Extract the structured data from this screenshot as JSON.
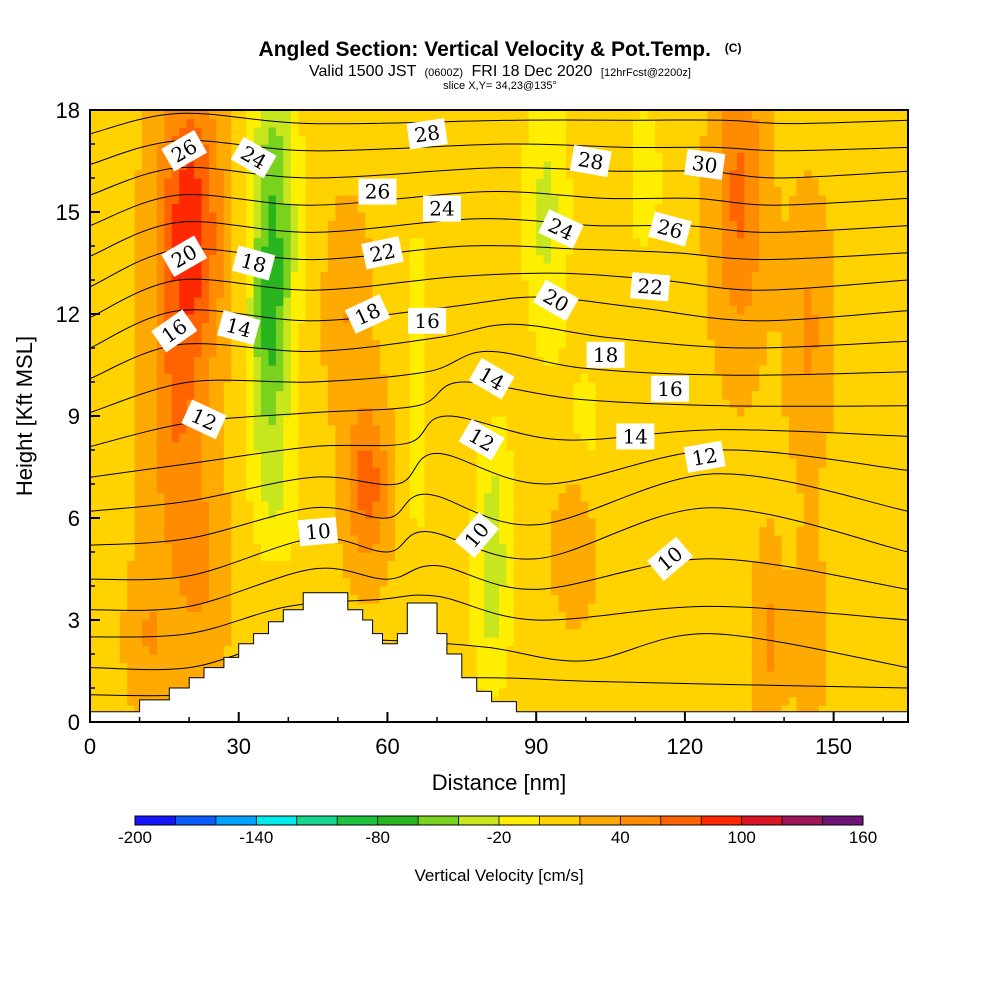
{
  "title": {
    "main": "Angled Section: Vertical Velocity & Pot.Temp.",
    "copyright": "(C)",
    "valid_prefix": "Valid 1500 JST",
    "valid_z": "(0600Z)",
    "valid_date": "FRI 18 Dec 2020",
    "valid_fcst": "[12hrFcst@2200z]",
    "slice": "slice X,Y= 34,23@135°"
  },
  "chart_data": {
    "type": "heatmap",
    "xlabel": "Distance [nm]",
    "ylabel": "Height [Kft MSL]",
    "xlim": [
      0,
      165
    ],
    "ylim": [
      0,
      18
    ],
    "xticks": [
      "0",
      "30",
      "60",
      "90",
      "120",
      "150"
    ],
    "yticks": [
      "0",
      "3",
      "6",
      "9",
      "12",
      "15",
      "18"
    ],
    "colorbar": {
      "label": "Vertical Velocity [cm/s]",
      "tick_labels": [
        "-200",
        "-140",
        "-80",
        "-20",
        "40",
        "100",
        "160"
      ],
      "levels": [
        -200,
        -180,
        -160,
        -140,
        -120,
        -100,
        -80,
        -60,
        -40,
        -20,
        0,
        20,
        40,
        60,
        80,
        100,
        120,
        140,
        160
      ],
      "colors": [
        "#1414ff",
        "#0a5cff",
        "#00a2ff",
        "#00ecec",
        "#14d68c",
        "#1ec23c",
        "#28b41e",
        "#78d21e",
        "#c8e61e",
        "#ffee00",
        "#ffd200",
        "#ffaa00",
        "#ff8c00",
        "#ff6400",
        "#ff2800",
        "#dc1428",
        "#a0145a",
        "#6e1478"
      ]
    },
    "field": "vertical_velocity_cm_s",
    "background_velocity": 15,
    "updrafts_downdrafts": [
      {
        "x": 20,
        "y": 14.5,
        "sx": 4.5,
        "sy": 3.0,
        "v": 80
      },
      {
        "x": 17,
        "y": 8.5,
        "sx": 4.0,
        "sy": 2.5,
        "v": 35
      },
      {
        "x": 22,
        "y": 4.5,
        "sx": 4.0,
        "sy": 2.0,
        "v": 28
      },
      {
        "x": 37,
        "y": 15.0,
        "sx": 3.5,
        "sy": 3.5,
        "v": -70
      },
      {
        "x": 36,
        "y": 10.5,
        "sx": 3.0,
        "sy": 2.5,
        "v": -45
      },
      {
        "x": 38,
        "y": 6.5,
        "sx": 4.0,
        "sy": 1.5,
        "v": -25
      },
      {
        "x": 56,
        "y": 7.0,
        "sx": 3.0,
        "sy": 1.6,
        "v": 55
      },
      {
        "x": 52,
        "y": 12.0,
        "sx": 3.0,
        "sy": 2.0,
        "v": 25
      },
      {
        "x": 66,
        "y": 10.0,
        "sx": 2.0,
        "sy": 4.5,
        "v": -25
      },
      {
        "x": 81,
        "y": 4.0,
        "sx": 3.0,
        "sy": 2.3,
        "v": -45
      },
      {
        "x": 82,
        "y": 7.5,
        "sx": 2.5,
        "sy": 1.5,
        "v": -20
      },
      {
        "x": 92,
        "y": 15.0,
        "sx": 3.5,
        "sy": 3.0,
        "v": -40
      },
      {
        "x": 100,
        "y": 8.5,
        "sx": 4.0,
        "sy": 2.0,
        "v": -20
      },
      {
        "x": 98,
        "y": 5.5,
        "sx": 3.0,
        "sy": 1.5,
        "v": 28
      },
      {
        "x": 112,
        "y": 16.0,
        "sx": 3.0,
        "sy": 2.0,
        "v": -25
      },
      {
        "x": 131,
        "y": 15.5,
        "sx": 3.5,
        "sy": 3.0,
        "v": 50
      },
      {
        "x": 145,
        "y": 11.5,
        "sx": 3.0,
        "sy": 2.5,
        "v": 28
      },
      {
        "x": 137,
        "y": 2.5,
        "sx": 2.0,
        "sy": 1.8,
        "v": 30
      },
      {
        "x": 145,
        "y": 2.5,
        "sx": 2.0,
        "sy": 1.8,
        "v": 25
      },
      {
        "x": 12,
        "y": 2.5,
        "sx": 3.0,
        "sy": 1.5,
        "v": 25
      }
    ],
    "terrain": [
      [
        0,
        0.3
      ],
      [
        10,
        0.3
      ],
      [
        10,
        0.65
      ],
      [
        16,
        0.65
      ],
      [
        16,
        1.0
      ],
      [
        20,
        1.0
      ],
      [
        20,
        1.3
      ],
      [
        23,
        1.3
      ],
      [
        23,
        1.6
      ],
      [
        27,
        1.6
      ],
      [
        27,
        1.9
      ],
      [
        30,
        1.9
      ],
      [
        30,
        2.3
      ],
      [
        33,
        2.3
      ],
      [
        33,
        2.6
      ],
      [
        36,
        2.6
      ],
      [
        36,
        2.95
      ],
      [
        39,
        2.95
      ],
      [
        39,
        3.3
      ],
      [
        43,
        3.3
      ],
      [
        43,
        3.8
      ],
      [
        52,
        3.8
      ],
      [
        52,
        3.3
      ],
      [
        55,
        3.3
      ],
      [
        55,
        3.0
      ],
      [
        57,
        3.0
      ],
      [
        57,
        2.6
      ],
      [
        59,
        2.6
      ],
      [
        59,
        2.3
      ],
      [
        62,
        2.3
      ],
      [
        62,
        2.6
      ],
      [
        64,
        2.6
      ],
      [
        64,
        3.5
      ],
      [
        70,
        3.5
      ],
      [
        70,
        2.6
      ],
      [
        72,
        2.6
      ],
      [
        72,
        2.0
      ],
      [
        75,
        2.0
      ],
      [
        75,
        1.3
      ],
      [
        78,
        1.3
      ],
      [
        78,
        0.9
      ],
      [
        81,
        0.9
      ],
      [
        81,
        0.6
      ],
      [
        86,
        0.6
      ],
      [
        86,
        0.3
      ],
      [
        165,
        0.3
      ]
    ],
    "isentropes": [
      {
        "label": "10",
        "points": [
          [
            0,
            0.8
          ],
          [
            20,
            0.8
          ],
          [
            45,
            1.2
          ],
          [
            80,
            1.3
          ],
          [
            100,
            1.2
          ],
          [
            130,
            1.1
          ],
          [
            165,
            1.0
          ]
        ]
      },
      {
        "label": "10",
        "points": [
          [
            0,
            1.6
          ],
          [
            20,
            1.6
          ],
          [
            40,
            2.4
          ],
          [
            60,
            2.4
          ],
          [
            80,
            2.2
          ],
          [
            100,
            1.8
          ],
          [
            125,
            2.6
          ],
          [
            165,
            1.6
          ]
        ]
      },
      {
        "label": "10",
        "points": [
          [
            0,
            2.5
          ],
          [
            20,
            2.6
          ],
          [
            40,
            3.4
          ],
          [
            58,
            3.6
          ],
          [
            70,
            3.7
          ],
          [
            90,
            3.0
          ],
          [
            125,
            3.4
          ],
          [
            165,
            3.0
          ]
        ]
      },
      {
        "label": "10",
        "points": [
          [
            0,
            3.3
          ],
          [
            20,
            3.4
          ],
          [
            45,
            4.5
          ],
          [
            60,
            4.2
          ],
          [
            70,
            4.6
          ],
          [
            90,
            3.9
          ],
          [
            125,
            4.8
          ],
          [
            165,
            3.9
          ]
        ]
      },
      {
        "label": "10",
        "points": [
          [
            0,
            4.2
          ],
          [
            20,
            4.3
          ],
          [
            45,
            5.4
          ],
          [
            60,
            5.0
          ],
          [
            68,
            5.6
          ],
          [
            90,
            4.8
          ],
          [
            125,
            6.3
          ],
          [
            165,
            5.0
          ]
        ]
      },
      {
        "label": "12",
        "points": [
          [
            0,
            5.2
          ],
          [
            20,
            5.4
          ],
          [
            45,
            6.3
          ],
          [
            60,
            6.0
          ],
          [
            68,
            6.7
          ],
          [
            90,
            5.8
          ],
          [
            126,
            7.3
          ],
          [
            165,
            6.2
          ]
        ]
      },
      {
        "label": "12",
        "points": [
          [
            0,
            6.2
          ],
          [
            20,
            6.5
          ],
          [
            45,
            7.2
          ],
          [
            62,
            7.0
          ],
          [
            70,
            7.9
          ],
          [
            92,
            7.0
          ],
          [
            126,
            8.0
          ],
          [
            165,
            7.4
          ]
        ]
      },
      {
        "label": "12",
        "points": [
          [
            0,
            7.2
          ],
          [
            20,
            7.6
          ],
          [
            45,
            8.1
          ],
          [
            64,
            8.2
          ],
          [
            72,
            9.0
          ],
          [
            95,
            8.3
          ],
          [
            127,
            8.6
          ],
          [
            165,
            8.4
          ]
        ]
      },
      {
        "label": "14",
        "points": [
          [
            0,
            8.1
          ],
          [
            20,
            8.8
          ],
          [
            45,
            9.1
          ],
          [
            66,
            9.3
          ],
          [
            75,
            10.0
          ],
          [
            98,
            9.5
          ],
          [
            128,
            9.3
          ],
          [
            165,
            9.3
          ]
        ]
      },
      {
        "label": "14",
        "points": [
          [
            0,
            9.1
          ],
          [
            20,
            10.0
          ],
          [
            45,
            10.0
          ],
          [
            68,
            10.3
          ],
          [
            80,
            10.9
          ],
          [
            100,
            10.4
          ],
          [
            130,
            10.2
          ],
          [
            165,
            10.3
          ]
        ]
      },
      {
        "label": "16",
        "points": [
          [
            0,
            10.1
          ],
          [
            18,
            11.1
          ],
          [
            45,
            10.9
          ],
          [
            70,
            11.3
          ],
          [
            85,
            11.7
          ],
          [
            105,
            11.3
          ],
          [
            132,
            11.0
          ],
          [
            165,
            11.2
          ]
        ]
      },
      {
        "label": "16",
        "points": [
          [
            0,
            11.0
          ],
          [
            18,
            12.1
          ],
          [
            45,
            11.8
          ],
          [
            72,
            12.2
          ],
          [
            90,
            12.5
          ],
          [
            110,
            12.2
          ],
          [
            134,
            11.8
          ],
          [
            165,
            12.1
          ]
        ]
      },
      {
        "label": "18",
        "points": [
          [
            0,
            11.9
          ],
          [
            18,
            13.0
          ],
          [
            45,
            12.7
          ],
          [
            74,
            13.1
          ],
          [
            95,
            13.2
          ],
          [
            115,
            13.0
          ],
          [
            135,
            12.7
          ],
          [
            165,
            13.0
          ]
        ]
      },
      {
        "label": "20",
        "points": [
          [
            0,
            12.8
          ],
          [
            18,
            13.9
          ],
          [
            45,
            13.6
          ],
          [
            76,
            14.0
          ],
          [
            100,
            13.9
          ],
          [
            118,
            13.8
          ],
          [
            136,
            13.6
          ],
          [
            165,
            13.8
          ]
        ]
      },
      {
        "label": "22",
        "points": [
          [
            0,
            13.7
          ],
          [
            18,
            14.7
          ],
          [
            45,
            14.4
          ],
          [
            78,
            14.8
          ],
          [
            102,
            14.6
          ],
          [
            120,
            14.6
          ],
          [
            137,
            14.4
          ],
          [
            165,
            14.6
          ]
        ]
      },
      {
        "label": "24",
        "points": [
          [
            0,
            14.6
          ],
          [
            18,
            15.5
          ],
          [
            45,
            15.2
          ],
          [
            80,
            15.6
          ],
          [
            104,
            15.4
          ],
          [
            122,
            15.4
          ],
          [
            138,
            15.2
          ],
          [
            165,
            15.4
          ]
        ]
      },
      {
        "label": "26",
        "points": [
          [
            0,
            15.5
          ],
          [
            18,
            16.3
          ],
          [
            45,
            16.0
          ],
          [
            82,
            16.3
          ],
          [
            106,
            16.2
          ],
          [
            124,
            16.2
          ],
          [
            139,
            16.0
          ],
          [
            165,
            16.2
          ]
        ]
      },
      {
        "label": "28",
        "points": [
          [
            0,
            16.4
          ],
          [
            18,
            17.1
          ],
          [
            45,
            16.8
          ],
          [
            84,
            17.0
          ],
          [
            108,
            16.9
          ],
          [
            126,
            16.9
          ],
          [
            140,
            16.8
          ],
          [
            165,
            16.9
          ]
        ]
      },
      {
        "label": "30",
        "points": [
          [
            0,
            17.3
          ],
          [
            18,
            17.9
          ],
          [
            45,
            17.6
          ],
          [
            86,
            17.7
          ],
          [
            110,
            17.7
          ],
          [
            128,
            17.7
          ],
          [
            141,
            17.6
          ],
          [
            165,
            17.7
          ]
        ]
      }
    ],
    "contour_labels": [
      {
        "text": "26",
        "x": 19,
        "y": 16.8,
        "rot": -30
      },
      {
        "text": "24",
        "x": 33,
        "y": 16.6,
        "rot": 30
      },
      {
        "text": "28",
        "x": 68,
        "y": 17.3,
        "rot": -8
      },
      {
        "text": "26",
        "x": 58,
        "y": 15.6,
        "rot": 0
      },
      {
        "text": "24",
        "x": 71,
        "y": 15.1,
        "rot": 0
      },
      {
        "text": "28",
        "x": 101,
        "y": 16.5,
        "rot": 10
      },
      {
        "text": "30",
        "x": 124,
        "y": 16.4,
        "rot": 8
      },
      {
        "text": "20",
        "x": 19,
        "y": 13.7,
        "rot": -30
      },
      {
        "text": "18",
        "x": 33,
        "y": 13.5,
        "rot": 15
      },
      {
        "text": "22",
        "x": 59,
        "y": 13.8,
        "rot": -12
      },
      {
        "text": "24",
        "x": 95,
        "y": 14.5,
        "rot": 25
      },
      {
        "text": "26",
        "x": 117,
        "y": 14.5,
        "rot": 15
      },
      {
        "text": "16",
        "x": 17,
        "y": 11.5,
        "rot": -35
      },
      {
        "text": "14",
        "x": 30,
        "y": 11.6,
        "rot": 15
      },
      {
        "text": "18",
        "x": 56,
        "y": 12.0,
        "rot": -25
      },
      {
        "text": "16",
        "x": 68,
        "y": 11.8,
        "rot": 0
      },
      {
        "text": "20",
        "x": 94,
        "y": 12.4,
        "rot": 30
      },
      {
        "text": "22",
        "x": 113,
        "y": 12.8,
        "rot": 5
      },
      {
        "text": "18",
        "x": 104,
        "y": 10.8,
        "rot": 0
      },
      {
        "text": "14",
        "x": 81,
        "y": 10.1,
        "rot": 30
      },
      {
        "text": "16",
        "x": 117,
        "y": 9.8,
        "rot": 0
      },
      {
        "text": "12",
        "x": 23,
        "y": 8.9,
        "rot": 25
      },
      {
        "text": "12",
        "x": 79,
        "y": 8.3,
        "rot": 30
      },
      {
        "text": "14",
        "x": 110,
        "y": 8.4,
        "rot": 0
      },
      {
        "text": "12",
        "x": 124,
        "y": 7.8,
        "rot": -10
      },
      {
        "text": "10",
        "x": 46,
        "y": 5.6,
        "rot": -5
      },
      {
        "text": "10",
        "x": 78,
        "y": 5.5,
        "rot": -50
      },
      {
        "text": "10",
        "x": 117,
        "y": 4.8,
        "rot": -40
      }
    ]
  }
}
